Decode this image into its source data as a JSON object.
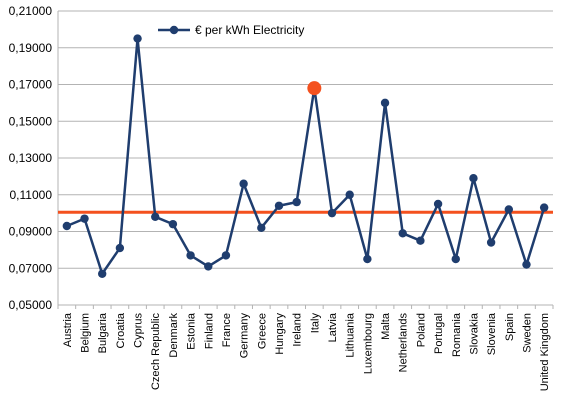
{
  "chart_data": {
    "type": "line",
    "title": "",
    "xlabel": "",
    "ylabel": "",
    "ylim": [
      0.05,
      0.21
    ],
    "yticks": [
      "0,05000",
      "0,07000",
      "0,09000",
      "0,11000",
      "0,13000",
      "0,15000",
      "0,17000",
      "0,19000",
      "0,21000"
    ],
    "grid": "horizontal",
    "legend_position": "top-left",
    "categories": [
      "Austria",
      "Belgium",
      "Bulgaria",
      "Croatia",
      "Cyprus",
      "Czech Republic",
      "Denmark",
      "Estonia",
      "Finland",
      "France",
      "Germany",
      "Greece",
      "Hungary",
      "Ireland",
      "Italy",
      "Latvia",
      "Lithuania",
      "Luxembourg",
      "Malta",
      "Netherlands",
      "Poland",
      "Portugal",
      "Romania",
      "Slovakia",
      "Slovenia",
      "Spain",
      "Sweden",
      "United Kingdom"
    ],
    "series": [
      {
        "name": "€ per kWh Electricity",
        "color": "#1f3d6e",
        "values": [
          0.093,
          0.097,
          0.067,
          0.081,
          0.195,
          0.098,
          0.094,
          0.077,
          0.071,
          0.077,
          0.116,
          0.092,
          0.104,
          0.106,
          0.168,
          0.1,
          0.11,
          0.075,
          0.16,
          0.089,
          0.085,
          0.105,
          0.075,
          0.119,
          0.084,
          0.102,
          0.072,
          0.103
        ]
      }
    ],
    "highlight": {
      "category": "Italy",
      "value": 0.168,
      "color": "#f4511e"
    },
    "reference_line": {
      "value": 0.1005,
      "color": "#f4511e"
    }
  }
}
